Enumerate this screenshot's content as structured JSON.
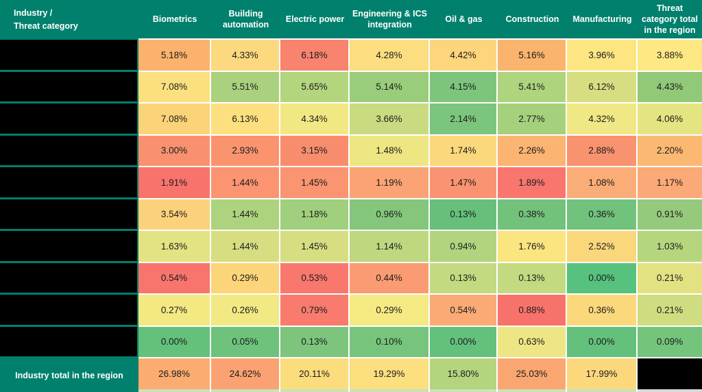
{
  "table": {
    "corner_label": "Industry /\nThreat category",
    "total_label": "Industry total in the region",
    "row_labels_redacted": true,
    "redacted_row_count": 10,
    "colors": {
      "header_bg": "#00806D",
      "header_text": "#FFFFFF",
      "grid_line": "#FFFFFF",
      "redacted_black": "#000000",
      "cell_text": "#1C1C1C",
      "bottom_strip_green": "#C9E2B8",
      "bottom_strip_gray": "#D9D9D9"
    },
    "cell_colors": [
      [
        "#FAB26C",
        "#FCD97E",
        "#F8836E",
        "#FCDE80",
        "#FCD57C",
        "#FAB46D",
        "#FDE682",
        "#FDE883"
      ],
      [
        "#FCE07F",
        "#A9D17E",
        "#B3D57E",
        "#9ACD7B",
        "#7EC57C",
        "#AFD47E",
        "#D6DE81",
        "#92C979"
      ],
      [
        "#FBD378",
        "#FCDF7E",
        "#F2E883",
        "#C9DB80",
        "#7CC57C",
        "#A5D17D",
        "#EFE884",
        "#E5E483"
      ],
      [
        "#F9916F",
        "#F9946F",
        "#F88D6E",
        "#EEE683",
        "#FCD87D",
        "#FBB471",
        "#F9926F",
        "#FBB873"
      ],
      [
        "#F8736C",
        "#FA9471",
        "#FA9471",
        "#FBA374",
        "#FA9371",
        "#F8766D",
        "#FBAD77",
        "#FBA976"
      ],
      [
        "#FCD17B",
        "#AED37E",
        "#A0CF7D",
        "#84C67C",
        "#66C07B",
        "#72C27C",
        "#70C27C",
        "#95CA7D"
      ],
      [
        "#E4E383",
        "#D6DE81",
        "#D6DE81",
        "#BDD87F",
        "#B2D47E",
        "#FAE580",
        "#FBD77C",
        "#B6D67E"
      ],
      [
        "#F8756D",
        "#FCD47A",
        "#F8786D",
        "#FA9B73",
        "#C3DA80",
        "#C3DA80",
        "#57C17E",
        "#E3E283"
      ],
      [
        "#F4E883",
        "#F2E884",
        "#F87B6E",
        "#F5E983",
        "#FBAA76",
        "#F8726C",
        "#FCD87D",
        "#D0DC80"
      ],
      [
        "#63C17C",
        "#6EC27C",
        "#7DC57D",
        "#77C47C",
        "#63C17C",
        "#EEE684",
        "#63C17C",
        "#75C47C"
      ]
    ],
    "total_colors": [
      "#FBAC70",
      "#FAA271",
      "#FCDD7D",
      "#FCDF7E",
      "#B4D57E",
      "#FAA671",
      "#FCD87D",
      "#000000"
    ]
  },
  "chart_data": {
    "type": "heatmap",
    "title": "Industry / Threat category",
    "unit": "%",
    "color_scale": "red (high) - yellow - green (low), scaled per row",
    "columns": [
      "Biometrics",
      "Building automation",
      "Electric power",
      "Engineering & ICS integration",
      "Oil & gas",
      "Construction",
      "Manufacturing",
      "Threat category total in the region"
    ],
    "rows": [
      {
        "label_redacted": true,
        "values": [
          5.18,
          4.33,
          6.18,
          4.28,
          4.42,
          5.16,
          3.96,
          3.88
        ]
      },
      {
        "label_redacted": true,
        "values": [
          7.08,
          5.51,
          5.65,
          5.14,
          4.15,
          5.41,
          6.12,
          4.43
        ]
      },
      {
        "label_redacted": true,
        "values": [
          7.08,
          6.13,
          4.34,
          3.66,
          2.14,
          2.77,
          4.32,
          4.06
        ]
      },
      {
        "label_redacted": true,
        "values": [
          3.0,
          2.93,
          3.15,
          1.48,
          1.74,
          2.26,
          2.88,
          2.2
        ]
      },
      {
        "label_redacted": true,
        "values": [
          1.91,
          1.44,
          1.45,
          1.19,
          1.47,
          1.89,
          1.08,
          1.17
        ]
      },
      {
        "label_redacted": true,
        "values": [
          3.54,
          1.44,
          1.18,
          0.96,
          0.13,
          0.38,
          0.36,
          0.91
        ]
      },
      {
        "label_redacted": true,
        "values": [
          1.63,
          1.44,
          1.45,
          1.14,
          0.94,
          1.76,
          2.52,
          1.03
        ]
      },
      {
        "label_redacted": true,
        "values": [
          0.54,
          0.29,
          0.53,
          0.44,
          0.13,
          0.13,
          0.0,
          0.21
        ]
      },
      {
        "label_redacted": true,
        "values": [
          0.27,
          0.26,
          0.79,
          0.29,
          0.54,
          0.88,
          0.36,
          0.21
        ]
      },
      {
        "label_redacted": true,
        "values": [
          0.0,
          0.05,
          0.13,
          0.1,
          0.0,
          0.63,
          0.0,
          0.09
        ]
      }
    ],
    "total_row": {
      "label": "Industry total in the region",
      "values": [
        26.98,
        24.62,
        20.11,
        19.29,
        15.8,
        25.03,
        17.99,
        null
      ],
      "last_cell_redacted": true
    }
  }
}
